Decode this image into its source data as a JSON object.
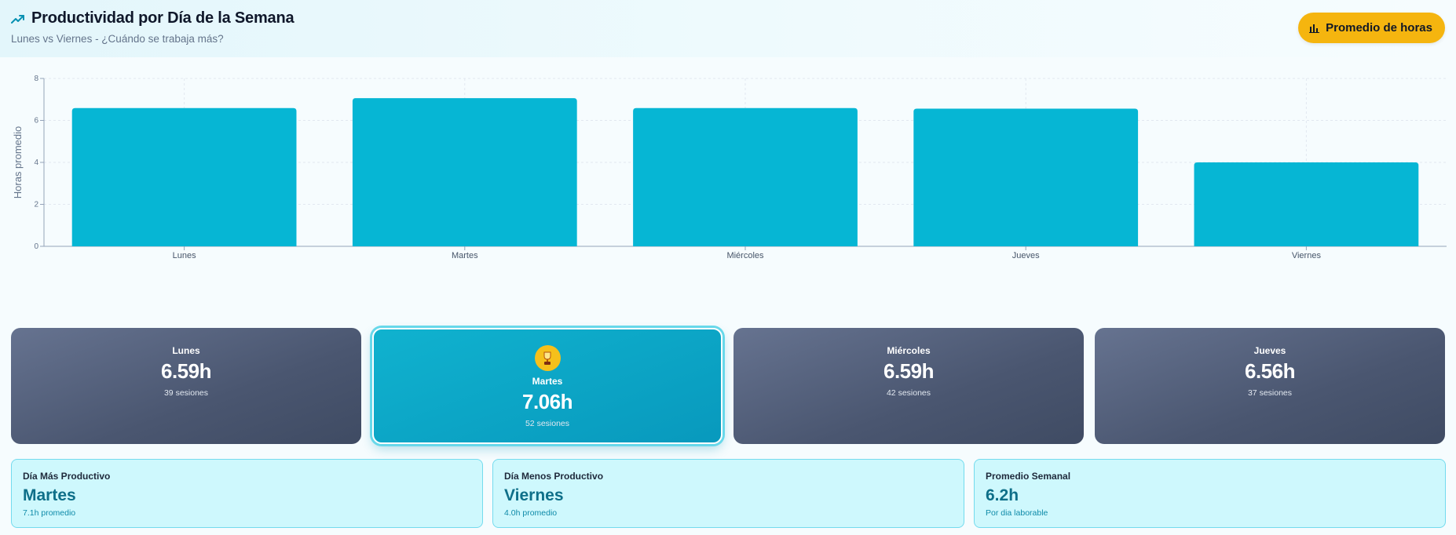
{
  "header": {
    "title": "Productividad por Día de la Semana",
    "subtitle": "Lunes vs Viernes - ¿Cuándo se trabaja más?",
    "button_label": "Promedio de horas",
    "title_icon": "trending-up-icon",
    "button_icon": "bar-chart-icon"
  },
  "chart_data": {
    "type": "bar",
    "categories": [
      "Lunes",
      "Martes",
      "Miércoles",
      "Jueves",
      "Viernes"
    ],
    "values": [
      6.59,
      7.06,
      6.59,
      6.56,
      4.0
    ],
    "ylabel": "Horas promedio",
    "xlabel": "",
    "ylim": [
      0,
      8
    ],
    "yticks": [
      0,
      2,
      4,
      6,
      8
    ],
    "grid": true,
    "bar_color": "#06b6d4"
  },
  "day_cards": [
    {
      "day": "Lunes",
      "hours": "6.59h",
      "sessions": "39 sesiones",
      "best": false
    },
    {
      "day": "Martes",
      "hours": "7.06h",
      "sessions": "52 sesiones",
      "best": true
    },
    {
      "day": "Miércoles",
      "hours": "6.59h",
      "sessions": "42 sesiones",
      "best": false
    },
    {
      "day": "Jueves",
      "hours": "6.56h",
      "sessions": "37 sesiones",
      "best": false
    }
  ],
  "stats": [
    {
      "label": "Día Más Productivo",
      "value": "Martes",
      "note": "7.1h promedio"
    },
    {
      "label": "Día Menos Productivo",
      "value": "Viernes",
      "note": "4.0h promedio"
    },
    {
      "label": "Promedio Semanal",
      "value": "6.2h",
      "note": "Por dia laborable"
    }
  ],
  "colors": {
    "accent": "#06b6d4",
    "button": "#f5b50f",
    "card_dark": "#4a5670",
    "card_best": "#0899bd",
    "stat_bg": "#cef8fd"
  }
}
